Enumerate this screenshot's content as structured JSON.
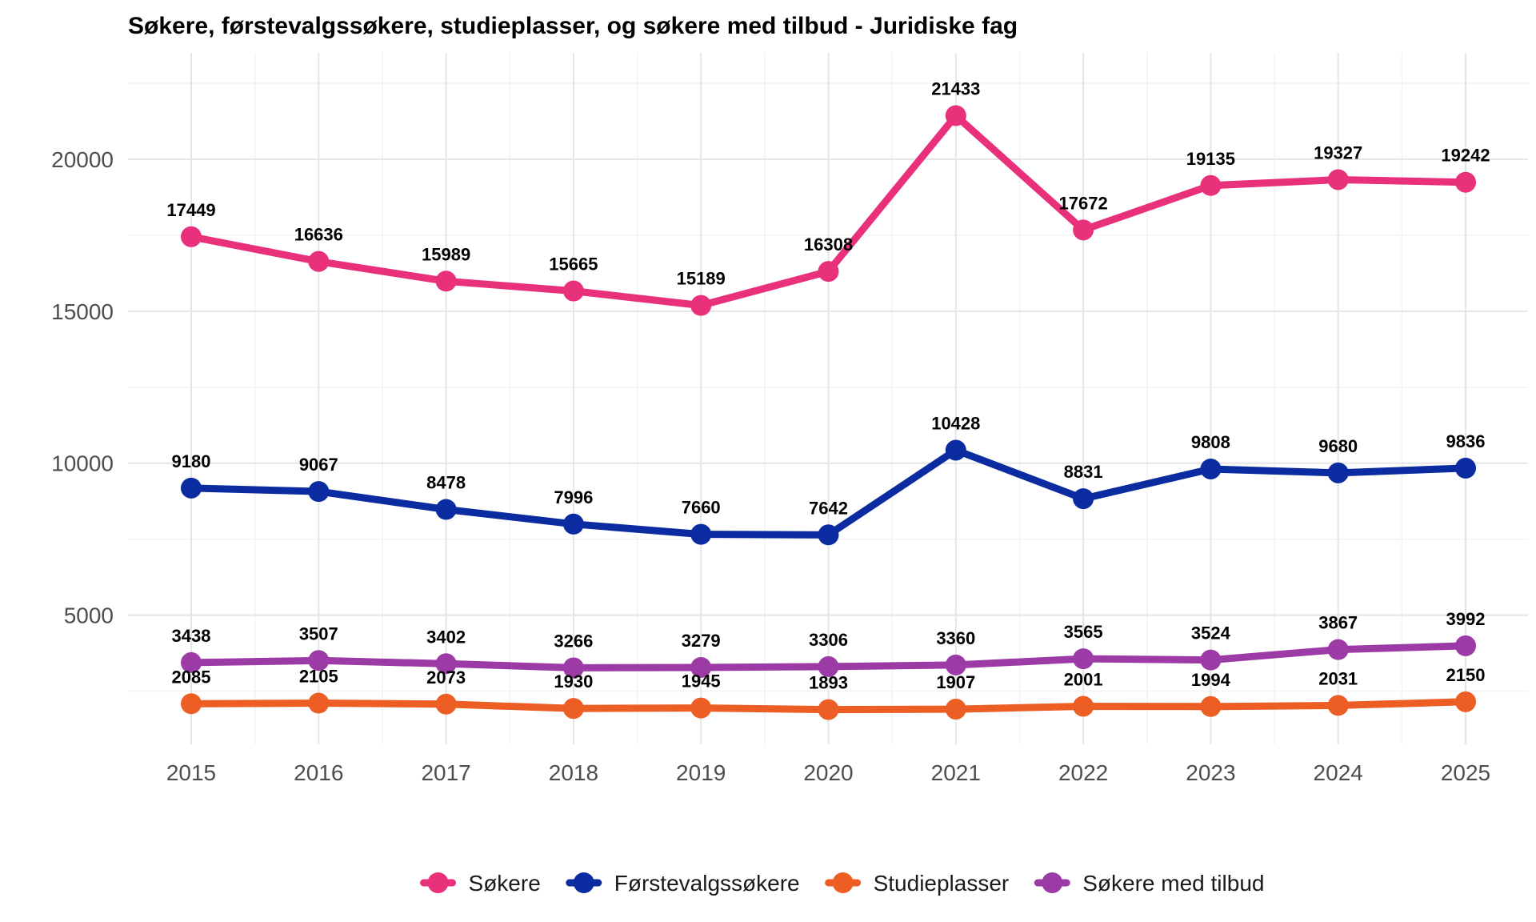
{
  "chart_data": {
    "type": "line",
    "title": "Søkere, førstevalgssøkere, studieplasser, og søkere med tilbud - Juridiske fag",
    "xlabel": "",
    "ylabel": "",
    "x": [
      2015,
      2016,
      2017,
      2018,
      2019,
      2020,
      2021,
      2022,
      2023,
      2024,
      2025
    ],
    "x_tick_labels": [
      "2015",
      "2016",
      "2017",
      "2018",
      "2019",
      "2020",
      "2021",
      "2022",
      "2023",
      "2024",
      "2025"
    ],
    "y_ticks": [
      5000,
      10000,
      15000,
      20000
    ],
    "y_tick_labels": [
      "5000",
      "10000",
      "15000",
      "20000"
    ],
    "ylim": [
      750,
      23500
    ],
    "grid": true,
    "legend_position": "bottom",
    "series": [
      {
        "name": "Søkere",
        "color": "#E8317A",
        "values": [
          17449,
          16636,
          15989,
          15665,
          15189,
          16308,
          21433,
          17672,
          19135,
          19327,
          19242
        ]
      },
      {
        "name": "Førstevalgssøkere",
        "color": "#0A2CA0",
        "values": [
          9180,
          9067,
          8478,
          7996,
          7660,
          7642,
          10428,
          8831,
          9808,
          9680,
          9836
        ]
      },
      {
        "name": "Studieplasser",
        "color": "#EC5E23",
        "values": [
          2085,
          2105,
          2073,
          1930,
          1945,
          1893,
          1907,
          2001,
          1994,
          2031,
          2150
        ]
      },
      {
        "name": "Søkere med tilbud",
        "color": "#9C3BA5",
        "values": [
          3438,
          3507,
          3402,
          3266,
          3279,
          3306,
          3360,
          3565,
          3524,
          3867,
          3992
        ]
      }
    ]
  }
}
